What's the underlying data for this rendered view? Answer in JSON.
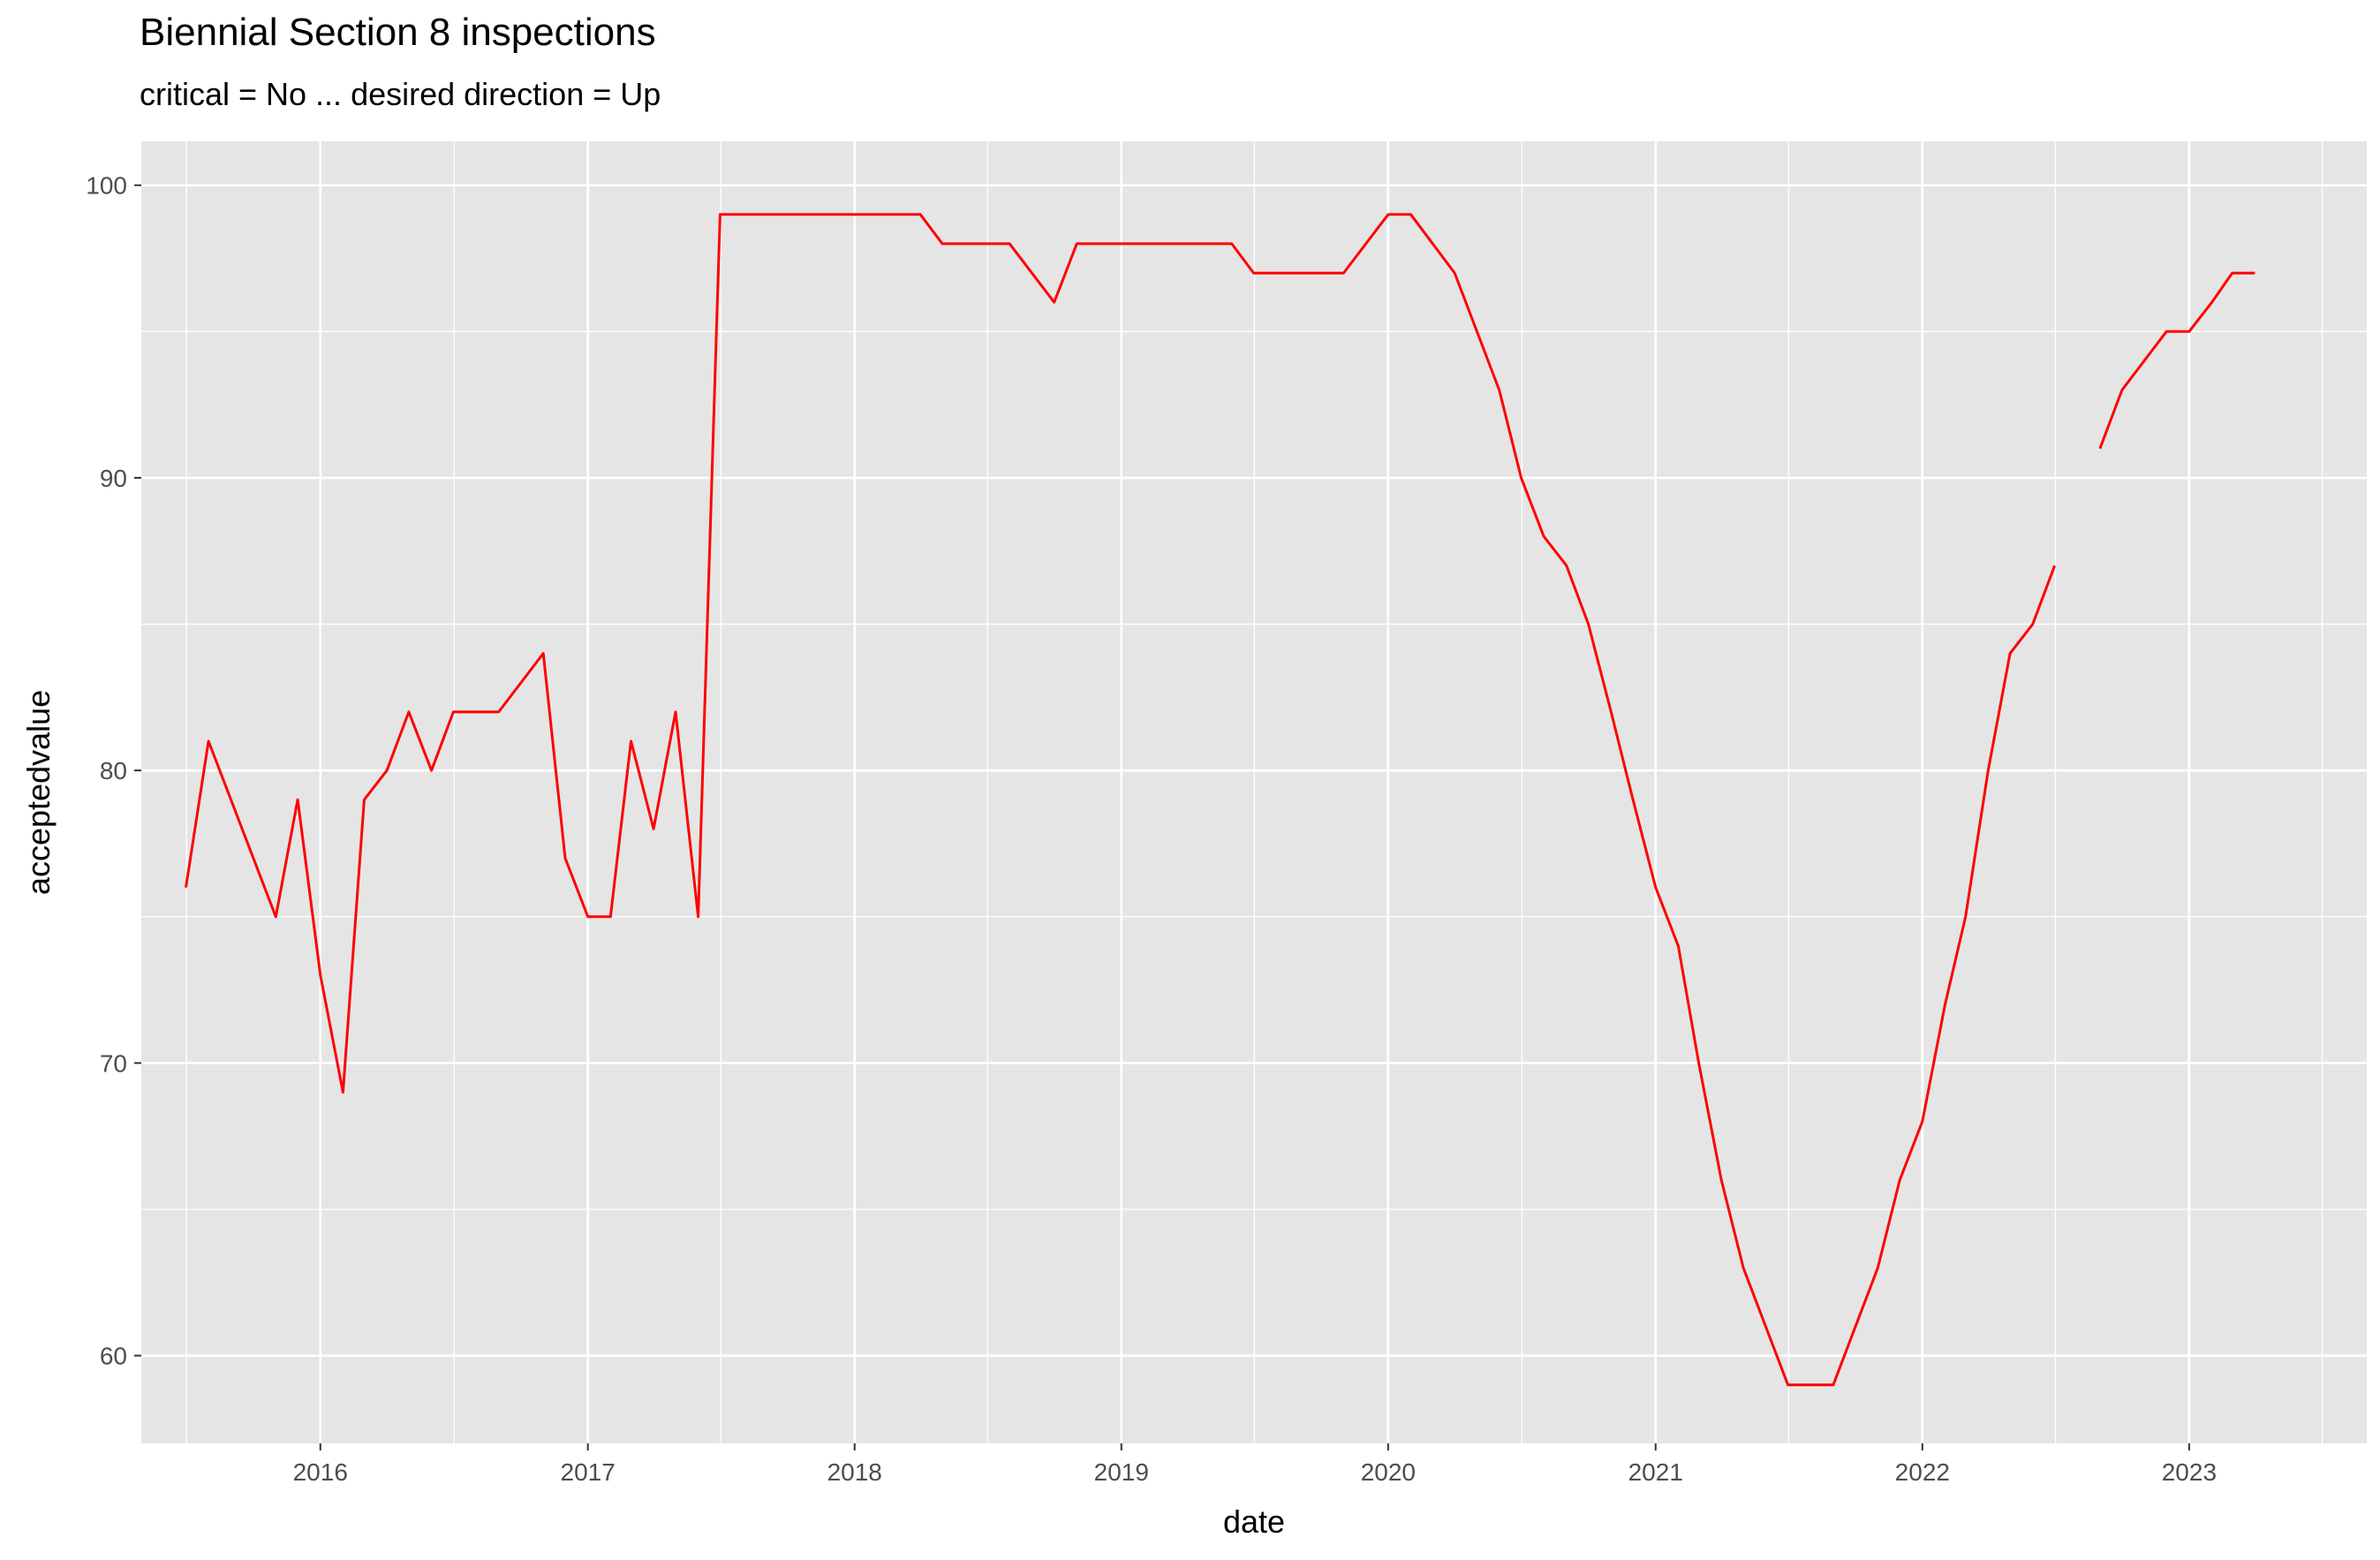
{
  "title": "Biennial Section 8 inspections",
  "subtitle": "critical = No ... desired direction = Up",
  "chart_data": {
    "type": "line",
    "title": "Biennial Section 8 inspections",
    "subtitle": "critical = No ... desired direction = Up",
    "xlabel": "date",
    "ylabel": "acceptedvalue",
    "xlim": [
      "2015-05-01",
      "2023-09-01"
    ],
    "ylim": [
      57,
      101.5
    ],
    "x_ticks": [
      "2016",
      "2017",
      "2018",
      "2019",
      "2020",
      "2021",
      "2022",
      "2023"
    ],
    "y_ticks": [
      60,
      70,
      80,
      90,
      100
    ],
    "grid": true,
    "legend": "none",
    "line_color": "#ff0000",
    "panel_background": "#e5e5e5",
    "series": [
      {
        "segments": [
          [
            [
              "2015-07-01",
              76
            ],
            [
              "2015-08-01",
              81
            ],
            [
              "2015-11-01",
              75
            ],
            [
              "2015-12-01",
              79
            ],
            [
              "2016-01-01",
              73
            ],
            [
              "2016-02-01",
              69
            ],
            [
              "2016-03-01",
              79
            ],
            [
              "2016-04-01",
              80
            ],
            [
              "2016-05-01",
              82
            ],
            [
              "2016-06-01",
              80
            ],
            [
              "2016-07-01",
              82
            ],
            [
              "2016-09-01",
              82
            ],
            [
              "2016-11-01",
              84
            ],
            [
              "2016-12-01",
              77
            ],
            [
              "2017-01-01",
              75
            ],
            [
              "2017-02-01",
              75
            ],
            [
              "2017-03-01",
              81
            ],
            [
              "2017-04-01",
              78
            ],
            [
              "2017-05-01",
              82
            ],
            [
              "2017-06-01",
              75
            ],
            [
              "2017-07-01",
              99
            ],
            [
              "2018-04-01",
              99
            ],
            [
              "2018-05-01",
              98
            ],
            [
              "2018-08-01",
              98
            ],
            [
              "2018-10-01",
              96
            ],
            [
              "2018-11-01",
              98
            ],
            [
              "2019-06-01",
              98
            ],
            [
              "2019-07-01",
              97
            ],
            [
              "2019-11-01",
              97
            ],
            [
              "2020-01-01",
              99
            ],
            [
              "2020-02-01",
              99
            ],
            [
              "2020-04-01",
              97
            ],
            [
              "2020-06-01",
              93
            ],
            [
              "2020-07-01",
              90
            ],
            [
              "2020-08-01",
              88
            ],
            [
              "2020-09-01",
              87
            ],
            [
              "2020-10-01",
              85
            ],
            [
              "2020-11-01",
              82
            ],
            [
              "2020-12-01",
              79
            ],
            [
              "2021-01-01",
              76
            ],
            [
              "2021-02-01",
              74
            ],
            [
              "2021-03-01",
              70
            ],
            [
              "2021-04-01",
              66
            ],
            [
              "2021-05-01",
              63
            ],
            [
              "2021-07-01",
              59
            ],
            [
              "2021-09-01",
              59
            ],
            [
              "2021-11-01",
              63
            ],
            [
              "2021-12-01",
              66
            ],
            [
              "2022-01-01",
              68
            ],
            [
              "2022-02-01",
              72
            ],
            [
              "2022-03-01",
              75
            ],
            [
              "2022-04-01",
              80
            ],
            [
              "2022-05-01",
              84
            ],
            [
              "2022-06-01",
              85
            ],
            [
              "2022-07-01",
              87
            ]
          ],
          [
            [
              "2022-09-01",
              91
            ],
            [
              "2022-10-01",
              93
            ],
            [
              "2022-12-01",
              95
            ],
            [
              "2023-01-01",
              95
            ],
            [
              "2023-02-01",
              96
            ],
            [
              "2023-03-01",
              97
            ],
            [
              "2023-04-01",
              97
            ]
          ]
        ]
      }
    ]
  }
}
